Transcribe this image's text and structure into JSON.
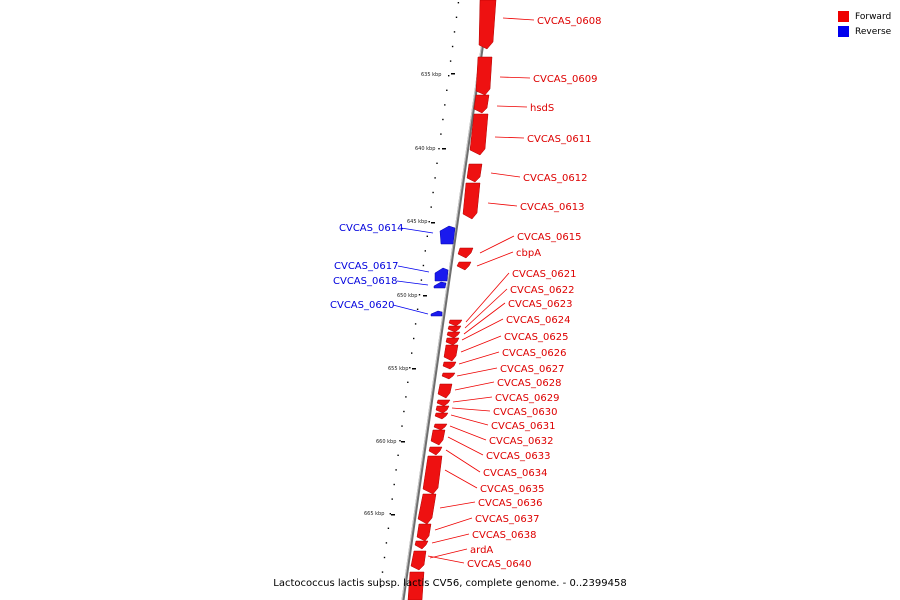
{
  "legend": [
    {
      "label": "Forward",
      "color": "#ee0000"
    },
    {
      "label": "Reverse",
      "color": "#0000ee"
    }
  ],
  "colors": {
    "forward": "#ee0000",
    "reverse": "#0000ee",
    "backbone": "#888888"
  },
  "scale_labels": [
    "635 kbp",
    "640 kbp",
    "645 kbp",
    "650 kbp",
    "655 kbp",
    "660 kbp",
    "665 kbp"
  ],
  "caption": "Lactococcus lactis subsp. lactis CV56, complete genome. - 0..2399458",
  "genes_forward": [
    "CVCAS_0608",
    "CVCAS_0609",
    "hsdS",
    "CVCAS_0611",
    "CVCAS_0612",
    "CVCAS_0613",
    "CVCAS_0615",
    "cbpA",
    "CVCAS_0621",
    "CVCAS_0622",
    "CVCAS_0623",
    "CVCAS_0624",
    "CVCAS_0625",
    "CVCAS_0626",
    "CVCAS_0627",
    "CVCAS_0628",
    "CVCAS_0629",
    "CVCAS_0630",
    "CVCAS_0631",
    "CVCAS_0632",
    "CVCAS_0633",
    "CVCAS_0634",
    "CVCAS_0635",
    "CVCAS_0636",
    "CVCAS_0637",
    "CVCAS_0638",
    "ardA",
    "CVCAS_0640"
  ],
  "genes_reverse": [
    "CVCAS_0614",
    "CVCAS_0617",
    "CVCAS_0618",
    "CVCAS_0620"
  ]
}
